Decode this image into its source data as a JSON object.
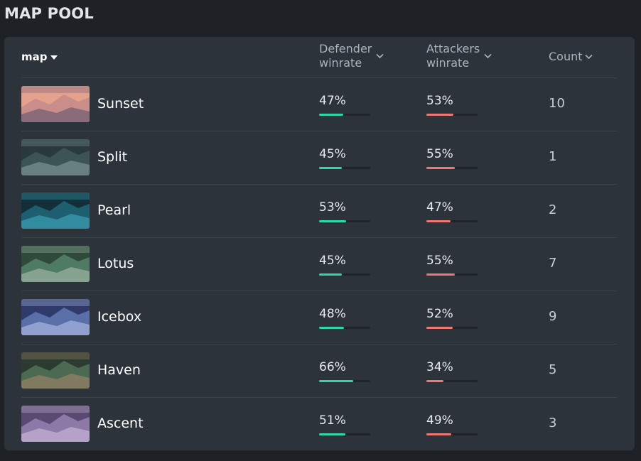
{
  "page_title": "MAP POOL",
  "table": {
    "headers": {
      "map": "map",
      "defender_line1": "Defender",
      "defender_line2": "winrate",
      "attackers_line1": "Attackers",
      "attackers_line2": "winrate",
      "count": "Count"
    },
    "colors": {
      "defender_bar": "#2fd6a8",
      "attackers_bar": "#f07874",
      "track": "#1f2429"
    },
    "rows": [
      {
        "map": "Sunset",
        "defender": "47%",
        "defender_value": 47,
        "attackers": "53%",
        "attackers_value": 53,
        "count": "10",
        "thumb_colors": [
          "#c98e8a",
          "#6f5c73",
          "#e6a18c"
        ]
      },
      {
        "map": "Split",
        "defender": "45%",
        "defender_value": 45,
        "attackers": "55%",
        "attackers_value": 55,
        "count": "1",
        "thumb_colors": [
          "#3c5456",
          "#7a9493",
          "#2a3a3c"
        ]
      },
      {
        "map": "Pearl",
        "defender": "53%",
        "defender_value": 53,
        "attackers": "47%",
        "attackers_value": 47,
        "count": "2",
        "thumb_colors": [
          "#1d5e70",
          "#3aa0b4",
          "#13303a"
        ]
      },
      {
        "map": "Lotus",
        "defender": "45%",
        "defender_value": 45,
        "attackers": "55%",
        "attackers_value": 55,
        "count": "7",
        "thumb_colors": [
          "#4f7b63",
          "#9fb4a4",
          "#2f4a3a"
        ]
      },
      {
        "map": "Icebox",
        "defender": "48%",
        "defender_value": 48,
        "attackers": "52%",
        "attackers_value": 52,
        "count": "9",
        "thumb_colors": [
          "#5a6ea8",
          "#a8b7e0",
          "#2f3a6b"
        ]
      },
      {
        "map": "Haven",
        "defender": "66%",
        "defender_value": 66,
        "attackers": "34%",
        "attackers_value": 34,
        "count": "5",
        "thumb_colors": [
          "#4c6a52",
          "#9a8266",
          "#2b3b31"
        ]
      },
      {
        "map": "Ascent",
        "defender": "51%",
        "defender_value": 51,
        "attackers": "49%",
        "attackers_value": 49,
        "count": "3",
        "thumb_colors": [
          "#8c79a8",
          "#c8b4d6",
          "#5a4a72"
        ]
      }
    ]
  }
}
